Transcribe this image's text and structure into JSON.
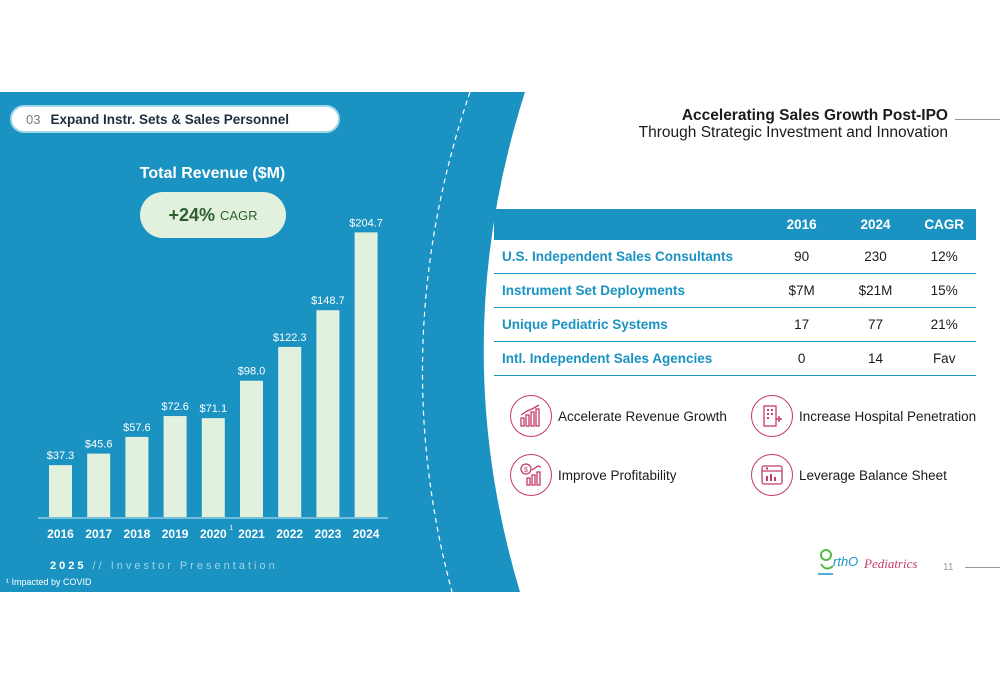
{
  "section": {
    "number": "03",
    "title": "Expand Instr. Sets & Sales Personnel"
  },
  "chart_data": {
    "type": "bar",
    "title": "Total Revenue ($M)",
    "categories": [
      "2016",
      "2017",
      "2018",
      "2019",
      "2020",
      "2021",
      "2022",
      "2023",
      "2024"
    ],
    "values": [
      37.3,
      45.6,
      57.6,
      72.6,
      71.1,
      98.0,
      122.3,
      148.7,
      204.7
    ],
    "value_labels": [
      "$37.3",
      "$45.6",
      "$57.6",
      "$72.6",
      "$71.1",
      "$98.0",
      "$122.3",
      "$148.7",
      "$204.7"
    ],
    "category_markers": [
      "",
      "",
      "",
      "",
      "1",
      "",
      "",
      "",
      ""
    ],
    "ylim": [
      0,
      210
    ],
    "xlabel": "",
    "ylabel": "",
    "grid": false,
    "bar_color": "#e2f0de",
    "annotation": {
      "value": "+24%",
      "label": "CAGR"
    }
  },
  "header": {
    "title": "Accelerating Sales Growth Post-IPO",
    "subtitle": "Through Strategic Investment and Innovation"
  },
  "table": {
    "columns": [
      "",
      "2016",
      "2024",
      "CAGR"
    ],
    "rows": [
      {
        "label": "U.S. Independent Sales Consultants",
        "v2016": "90",
        "v2024": "230",
        "cagr": "12%"
      },
      {
        "label": "Instrument Set Deployments",
        "v2016": "$7M",
        "v2024": "$21M",
        "cagr": "15%"
      },
      {
        "label": "Unique Pediatric Systems",
        "v2016": "17",
        "v2024": "77",
        "cagr": "21%"
      },
      {
        "label": "Intl. Independent Sales Agencies",
        "v2016": "0",
        "v2024": "14",
        "cagr": "Fav"
      }
    ]
  },
  "goals": [
    {
      "label": "Accelerate Revenue Growth",
      "icon": "bar-growth-icon"
    },
    {
      "label": "Increase Hospital Penetration",
      "icon": "hospital-icon"
    },
    {
      "label": "Improve Profitability",
      "icon": "dollar-chart-icon"
    },
    {
      "label": "Leverage Balance Sheet",
      "icon": "balance-sheet-icon"
    }
  ],
  "footer": {
    "year": "2025",
    "separator": "//",
    "text": "Investor Presentation",
    "footnote": "¹ Impacted by COVID",
    "page": "11"
  },
  "logo": {
    "text": "OrthoPediatrics"
  },
  "colors": {
    "primary_blue": "#1b93c2",
    "accent_pink": "#c43a6b",
    "bar_green": "#e2f0de",
    "dark_green": "#2e5e2e"
  }
}
